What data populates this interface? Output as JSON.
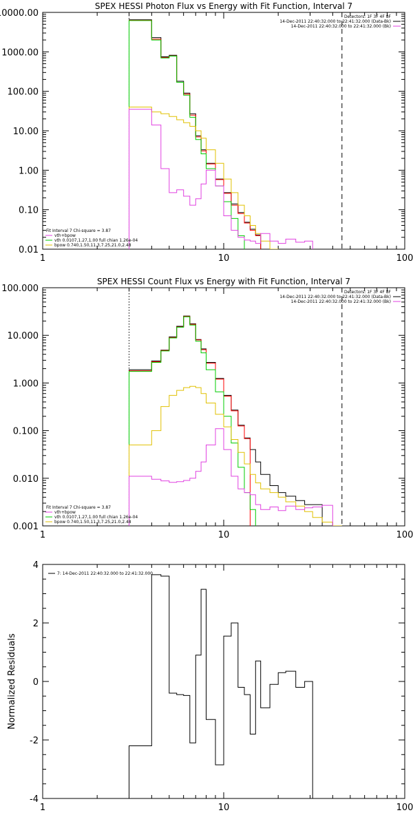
{
  "chart_data": [
    {
      "type": "line",
      "title": "SPEX HESSI Photon Flux vs Energy with Fit Function, Interval 7",
      "xlabel": "",
      "ylabel": "",
      "xscale": "log",
      "yscale": "log",
      "xlim": [
        1,
        100
      ],
      "ylim": [
        0.01,
        10000
      ],
      "x_ticks": [
        1,
        10,
        100
      ],
      "y_ticks": [
        10000,
        1000,
        100,
        10,
        1,
        0.1,
        0.01
      ],
      "y_tick_labels": [
        "10000.00",
        "1000.00",
        "100.00",
        "10.00",
        "1.00",
        "0.10",
        "0.01"
      ],
      "grid": false,
      "vlines": [
        {
          "x": 3.0,
          "style": "dotted",
          "color": "#000000"
        },
        {
          "x": 45.0,
          "style": "dashed",
          "color": "#000000"
        }
      ],
      "legend_top_right": [
        {
          "text": "Detectors: 1F 3F 4F 8F",
          "color": "#000000"
        },
        {
          "text": "14-Dec-2011 22:40:32.000 to 22:41:32.000 (Data-Bk)",
          "color": "#000000"
        },
        {
          "text": "14-Dec-2011 22:40:32.000 to 22:41:32.000 (Bk)",
          "color": "#e040e0"
        }
      ],
      "legend_bottom_left": [
        {
          "text": "Fit Interval 7   Chi-square = 3.87",
          "color": "#000000"
        },
        {
          "text": "vth+bpow",
          "color": "#e040e0"
        },
        {
          "text": "vth 0.0107,1.27,1.00  full chian 1.26e-04",
          "color": "#00cc00"
        },
        {
          "text": "bpow 0.740,1.50,11.3,7.25,21.0,2.48",
          "color": "#e0c000"
        }
      ],
      "edges": [
        3,
        3.5,
        4,
        4.5,
        5,
        5.5,
        6,
        6.5,
        7,
        7.5,
        8,
        9,
        10,
        11,
        12,
        13,
        14,
        15,
        16,
        18,
        20,
        22,
        25,
        28,
        31,
        35,
        40,
        45,
        50,
        56,
        63,
        70
      ],
      "series": [
        {
          "color": "#000000",
          "values": [
            6500,
            6500,
            2300,
            750,
            820,
            180,
            90,
            27,
            7.5,
            3.3,
            1.5,
            0.6,
            0.27,
            0.14,
            0.085,
            0.048,
            0.032,
            0.023
          ]
        },
        {
          "color": "#ff0000",
          "values": [
            6300,
            6300,
            2100,
            720,
            790,
            170,
            85,
            25,
            7.0,
            3.1,
            1.45,
            0.58,
            0.26,
            0.13,
            0.08,
            0.046,
            0.03,
            0.022
          ]
        },
        {
          "color": "#00cc00",
          "values": [
            6200,
            6200,
            2000,
            700,
            780,
            170,
            80,
            22,
            6.0,
            2.6,
            1.1,
            0.4,
            0.16,
            0.06,
            0.022,
            0.008
          ]
        },
        {
          "color": "#e0c000",
          "values": [
            40,
            40,
            30,
            27,
            23,
            19,
            16,
            13,
            10,
            6.5,
            3.3,
            1.5,
            0.6,
            0.27,
            0.13,
            0.07,
            0.04,
            0.025,
            0.016,
            0.01,
            0.007
          ]
        },
        {
          "color": "#e040e0",
          "values": [
            35,
            35,
            14,
            1.1,
            0.27,
            0.32,
            0.22,
            0.13,
            0.19,
            0.45,
            1.0,
            0.4,
            0.07,
            0.03,
            0.02,
            0.017,
            0.016,
            0.014,
            0.025,
            0.016,
            0.014,
            0.018,
            0.015,
            0.016
          ]
        }
      ]
    },
    {
      "type": "line",
      "title": "SPEX HESSI Count Flux vs Energy with Fit Function, Interval 7",
      "xlabel": "",
      "ylabel": "",
      "xscale": "log",
      "yscale": "log",
      "xlim": [
        1,
        100
      ],
      "ylim": [
        0.001,
        100
      ],
      "x_ticks": [
        1,
        10,
        100
      ],
      "y_ticks": [
        100,
        10,
        1,
        0.1,
        0.01,
        0.001
      ],
      "y_tick_labels": [
        "100.000",
        "10.000",
        "1.000",
        "0.100",
        "0.010",
        "0.001"
      ],
      "grid": false,
      "vlines": [
        {
          "x": 3.0,
          "style": "dotted",
          "color": "#000000"
        },
        {
          "x": 45.0,
          "style": "dashed",
          "color": "#000000"
        }
      ],
      "legend_top_right": [
        {
          "text": "Detectors: 1F 3F 4F 8F",
          "color": "#000000"
        },
        {
          "text": "14-Dec-2011 22:40:32.000 to 22:41:32.000 (Data-Bk)",
          "color": "#000000"
        },
        {
          "text": "14-Dec-2011 22:40:32.000 to 22:41:32.000 (Bk)",
          "color": "#e040e0"
        }
      ],
      "legend_bottom_left": [
        {
          "text": "Fit Interval 7   Chi-square = 3.87",
          "color": "#000000"
        },
        {
          "text": "vth+bpow",
          "color": "#e040e0"
        },
        {
          "text": "vth 0.0107,1.27,1.00  full chian 1.26e-04",
          "color": "#00cc00"
        },
        {
          "text": "bpow 0.740,1.50,11.3,7.25,21.0,2.48",
          "color": "#e0c000"
        }
      ],
      "edges": [
        3,
        3.5,
        4,
        4.5,
        5,
        5.5,
        6,
        6.5,
        7,
        7.5,
        8,
        9,
        10,
        11,
        12,
        13,
        14,
        15,
        16,
        18,
        20,
        22,
        25,
        28,
        31,
        35,
        40,
        45,
        50,
        56,
        63,
        70
      ],
      "series": [
        {
          "color": "#000000",
          "values": [
            1.9,
            1.9,
            2.9,
            4.9,
            9.3,
            15.5,
            25.5,
            17.5,
            8.2,
            5.2,
            2.7,
            1.25,
            0.55,
            0.27,
            0.13,
            0.07,
            0.04,
            0.022,
            0.012,
            0.007,
            0.005,
            0.0042,
            0.0034,
            0.0028,
            0.0028
          ]
        },
        {
          "color": "#ff0000",
          "values": [
            1.8,
            1.8,
            2.8,
            4.8,
            9.0,
            15.0,
            25.0,
            17.0,
            8.0,
            5.0,
            2.6,
            1.2,
            0.53,
            0.26,
            0.125,
            0.068
          ]
        },
        {
          "color": "#00cc00",
          "values": [
            1.75,
            1.75,
            2.7,
            4.7,
            8.8,
            14.8,
            24.5,
            16.5,
            7.5,
            4.3,
            1.9,
            0.65,
            0.2,
            0.055,
            0.017,
            0.005,
            0.0022
          ]
        },
        {
          "color": "#e0c000",
          "values": [
            0.05,
            0.05,
            0.1,
            0.32,
            0.55,
            0.7,
            0.8,
            0.85,
            0.8,
            0.6,
            0.38,
            0.22,
            0.12,
            0.065,
            0.035,
            0.02,
            0.012,
            0.008,
            0.006,
            0.005,
            0.004,
            0.0032,
            0.0026,
            0.002,
            0.0015,
            0.0012,
            0.001
          ]
        },
        {
          "color": "#e040e0",
          "values": [
            0.011,
            0.011,
            0.0095,
            0.0088,
            0.0082,
            0.0085,
            0.009,
            0.01,
            0.014,
            0.022,
            0.05,
            0.11,
            0.04,
            0.011,
            0.006,
            0.005,
            0.0045,
            0.0028,
            0.0022,
            0.0025,
            0.0021,
            0.0026,
            0.0022,
            0.0024,
            0.0025,
            0.0027
          ]
        }
      ]
    },
    {
      "type": "line",
      "title": "",
      "xlabel": "",
      "ylabel": "Normalized  Residuals",
      "xscale": "log",
      "yscale": "linear",
      "xlim": [
        1,
        100
      ],
      "ylim": [
        -4,
        4
      ],
      "x_ticks": [
        1,
        10,
        100
      ],
      "y_ticks": [
        4,
        2,
        0,
        -2,
        -4
      ],
      "y_tick_labels": [
        "4",
        "2",
        "0",
        "-2",
        "-4"
      ],
      "grid": false,
      "legend_top_left": [
        {
          "text": "7: 14-Dec-2011 22:40:32.000 to 22:41:32.000",
          "color": "#000000"
        }
      ],
      "edges": [
        3,
        3.5,
        4,
        4.5,
        5,
        5.5,
        6,
        6.5,
        7,
        7.5,
        8,
        9,
        10,
        11,
        12,
        13,
        14,
        15,
        16,
        18,
        20,
        22,
        25,
        28,
        31,
        35,
        40,
        45
      ],
      "series": [
        {
          "color": "#000000",
          "values": [
            -2.2,
            -2.2,
            3.65,
            3.6,
            -0.4,
            -0.45,
            -0.48,
            -2.1,
            0.9,
            3.15,
            -1.3,
            -2.85,
            1.55,
            2.0,
            -0.2,
            -0.45,
            -1.8,
            0.7,
            -0.9,
            -0.1,
            0.3,
            0.35,
            -0.2,
            0.0
          ]
        }
      ]
    }
  ]
}
